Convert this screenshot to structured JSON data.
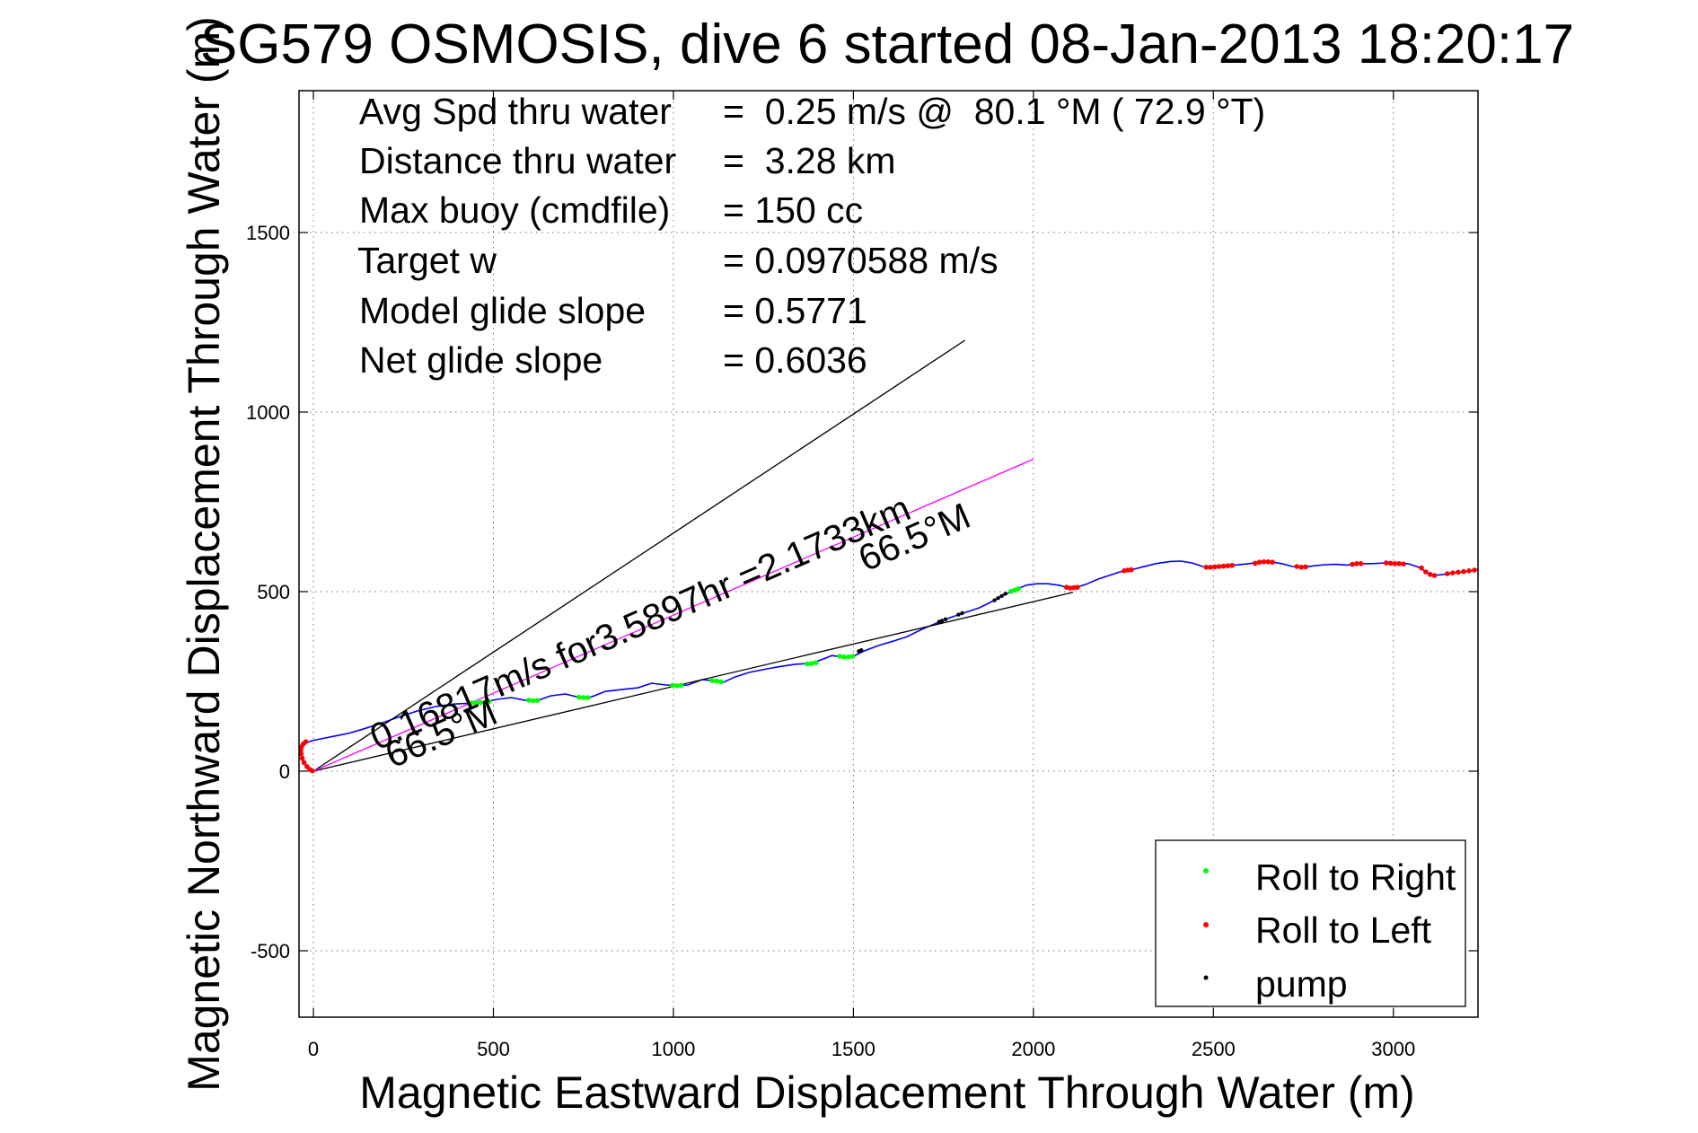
{
  "chart_data": {
    "type": "line",
    "title": "SG579 OSMOSIS, dive 6 started 08-Jan-2013 18:20:17",
    "xlabel": "Magnetic Eastward Displacement Through Water (m)",
    "ylabel": "Magnetic Northward Displacement Through Water (m)",
    "xlim": [
      -40,
      3235
    ],
    "ylim": [
      -685,
      1895
    ],
    "xticks": [
      0,
      500,
      1000,
      1500,
      2000,
      2500,
      3000
    ],
    "yticks": [
      -500,
      0,
      500,
      1000,
      1500
    ],
    "grid": true,
    "legend": {
      "placement": "bottom-right"
    },
    "series": [
      {
        "mark": "line",
        "color": "#0000ff",
        "x": [
          0,
          -10,
          -20,
          -30,
          -35,
          -34,
          -28,
          -18,
          0,
          20,
          60,
          100,
          140,
          190,
          240,
          290,
          340,
          390,
          430,
          470,
          510,
          550,
          590,
          620,
          660,
          700,
          740,
          770,
          810,
          860,
          900,
          940,
          980,
          1010,
          1040,
          1080,
          1110,
          1140,
          1170,
          1210,
          1260,
          1300,
          1340,
          1380,
          1410,
          1440,
          1470,
          1500,
          1530,
          1570,
          1610,
          1650,
          1690,
          1730,
          1770,
          1810,
          1850,
          1890,
          1920,
          1950,
          1980,
          2010,
          2040,
          2070,
          2100,
          2120,
          2150,
          2180,
          2210,
          2240,
          2270,
          2300,
          2340,
          2380,
          2410,
          2440,
          2470,
          2500,
          2530,
          2560,
          2600,
          2630,
          2660,
          2690,
          2720,
          2750,
          2780,
          2810,
          2840,
          2870,
          2900,
          2940,
          2980,
          3010,
          3040,
          3070,
          3090,
          3110,
          3140,
          3170,
          3200,
          3235
        ],
        "y": [
          0,
          5,
          14,
          28,
          45,
          60,
          72,
          80,
          86,
          90,
          98,
          106,
          118,
          134,
          152,
          168,
          180,
          187,
          189,
          192,
          200,
          205,
          197,
          196,
          210,
          215,
          205,
          206,
          222,
          228,
          232,
          245,
          240,
          238,
          240,
          255,
          252,
          248,
          262,
          275,
          285,
          292,
          298,
          300,
          310,
          322,
          318,
          320,
          335,
          350,
          362,
          375,
          395,
          412,
          428,
          442,
          455,
          475,
          492,
          505,
          518,
          522,
          522,
          518,
          510,
          512,
          522,
          535,
          545,
          555,
          560,
          568,
          578,
          584,
          585,
          580,
          570,
          568,
          570,
          574,
          578,
          583,
          583,
          578,
          570,
          568,
          572,
          575,
          576,
          574,
          578,
          578,
          580,
          578,
          578,
          568,
          555,
          545,
          548,
          553,
          555,
          562
        ]
      },
      {
        "name": "Roll to Right",
        "mark": "dot",
        "color": "#00ff00",
        "x": [
          440,
          452,
          464,
          476,
          488,
          598,
          610,
          622,
          738,
          750,
          762,
          998,
          1010,
          1022,
          1108,
          1120,
          1132,
          1372,
          1384,
          1396,
          1462,
          1474,
          1486,
          1498,
          1938,
          1948,
          1958
        ],
        "y": [
          190,
          190,
          191,
          192,
          194,
          198,
          196,
          197,
          206,
          205,
          205,
          239,
          238,
          239,
          252,
          251,
          249,
          299,
          300,
          302,
          320,
          318,
          318,
          320,
          501,
          504,
          508
        ]
      },
      {
        "name": "Roll to Left",
        "mark": "dot",
        "color": "#ff0000",
        "x": [
          -3,
          -10,
          -18,
          -26,
          -31,
          -34,
          -35,
          -33,
          -28,
          -21,
          2092,
          2102,
          2112,
          2122,
          2252,
          2262,
          2272,
          2480,
          2492,
          2504,
          2516,
          2528,
          2540,
          2552,
          2616,
          2628,
          2640,
          2652,
          2664,
          2732,
          2744,
          2756,
          2886,
          2898,
          2910,
          2980,
          2992,
          3004,
          3016,
          3028,
          3078,
          3090,
          3102,
          3114,
          3150,
          3165,
          3180,
          3195,
          3210,
          3225
        ],
        "y": [
          1,
          5,
          13,
          24,
          36,
          48,
          58,
          68,
          76,
          82,
          512,
          510,
          511,
          512,
          558,
          560,
          561,
          568,
          568,
          569,
          570,
          571,
          572,
          573,
          579,
          582,
          583,
          583,
          582,
          570,
          568,
          569,
          576,
          578,
          578,
          580,
          579,
          578,
          578,
          577,
          566,
          555,
          548,
          545,
          550,
          552,
          554,
          556,
          558,
          560
        ]
      },
      {
        "name": "pump",
        "mark": "dot",
        "color": "#000000",
        "x": [
          1515,
          1522,
          1738,
          1746,
          1756,
          1792,
          1802,
          1892,
          1902,
          1912,
          1922
        ],
        "y": [
          334,
          337,
          416,
          419,
          423,
          436,
          440,
          476,
          482,
          488,
          494
        ]
      },
      {
        "mark": "line",
        "color": "#000000",
        "x": [
          0,
          1810
        ],
        "y": [
          0,
          1200
        ]
      },
      {
        "mark": "line",
        "color": "#000000",
        "x": [
          0,
          2110
        ],
        "y": [
          0,
          498
        ]
      },
      {
        "mark": "line",
        "color": "#ff00ff",
        "x": [
          0,
          2000
        ],
        "y": [
          0,
          869
        ]
      }
    ],
    "annotations": {
      "stats": [
        {
          "label": "Avg Spd thru water",
          "value": "=  0.25 m/s @  80.1 °M ( 72.9 °T)"
        },
        {
          "label": "Distance thru water",
          "value": "=  3.28 km"
        },
        {
          "label": "Max buoy (cmdfile)",
          "value": "= 150 cc"
        },
        {
          "label": "Target w",
          "value": "= 0.0970588 m/s"
        },
        {
          "label": "Model glide slope",
          "value": "= 0.5771"
        },
        {
          "label": "Net glide slope",
          "value": "= 0.6036"
        }
      ],
      "line_labels": [
        "0.16817m/s for3.5897hr =2.1733km",
        "66.5°M",
        "66.5°M"
      ]
    }
  }
}
